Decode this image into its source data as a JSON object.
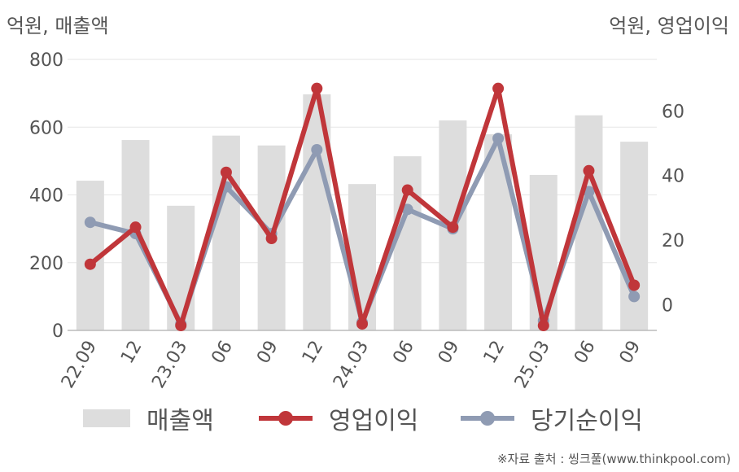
{
  "colors": {
    "bar": "#dddddd",
    "operating_profit": "#c0363a",
    "net_income": "#8f9bb3",
    "grid": "#e6e6e6",
    "axis": "#bbbbbb",
    "text": "#555555"
  },
  "labels": {
    "left_axis_title": "억원, 매출액",
    "right_axis_title": "억원, 영업이익",
    "source": "※자료 출처 : 씽크풀(www.thinkpool.com)"
  },
  "chart_data": {
    "type": "bar+line",
    "categories": [
      "22.09",
      "12",
      "23.03",
      "06",
      "09",
      "12",
      "24.03",
      "06",
      "09",
      "12",
      "25.03",
      "06",
      "09"
    ],
    "series": [
      {
        "name": "매출액",
        "type": "bar",
        "axis": "left",
        "color": "#dddddd",
        "values": [
          442,
          562,
          368,
          575,
          546,
          697,
          432,
          514,
          620,
          579,
          459,
          635,
          557
        ]
      },
      {
        "name": "영업이익",
        "type": "line",
        "axis": "right",
        "color": "#c0363a",
        "values": [
          12.5,
          24,
          -6.5,
          41,
          20.5,
          67,
          -6,
          35.5,
          24,
          67,
          -6.5,
          41.5,
          6
        ]
      },
      {
        "name": "당기순이익",
        "type": "line",
        "axis": "right",
        "color": "#8f9bb3",
        "values": [
          25.5,
          22,
          -6,
          36.5,
          22,
          48,
          -5.5,
          29.5,
          23.5,
          51.5,
          -5,
          35,
          2.5
        ]
      }
    ],
    "left_axis": {
      "ticks": [
        "0",
        "200",
        "400",
        "600",
        "800"
      ],
      "range": [
        0,
        800
      ]
    },
    "right_axis": {
      "ticks": [
        "0",
        "20",
        "40",
        "60"
      ],
      "range": [
        -8,
        76
      ]
    },
    "grid": true,
    "legend_position": "bottom"
  }
}
